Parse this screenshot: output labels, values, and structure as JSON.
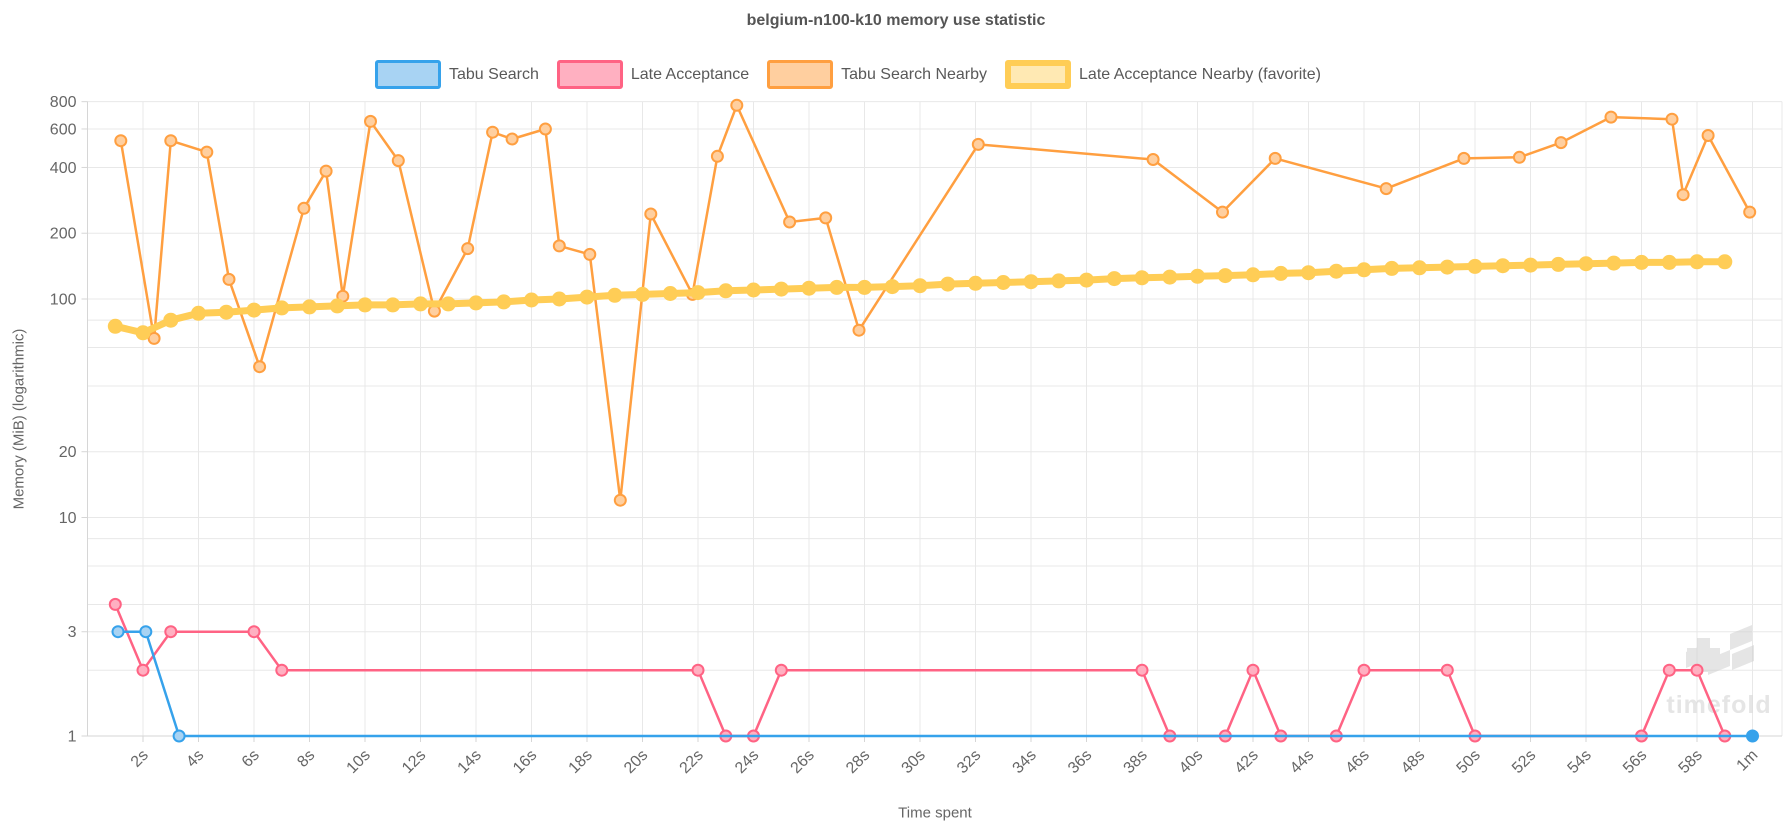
{
  "title": "belgium-n100-k10 memory use statistic",
  "axes": {
    "x_title": "Time spent",
    "y_title": "Memory (MiB) (logarithmic)",
    "x_ticks": [
      {
        "t": 2,
        "label": "2s"
      },
      {
        "t": 4,
        "label": "4s"
      },
      {
        "t": 6,
        "label": "6s"
      },
      {
        "t": 8,
        "label": "8s"
      },
      {
        "t": 10,
        "label": "10s"
      },
      {
        "t": 12,
        "label": "12s"
      },
      {
        "t": 14,
        "label": "14s"
      },
      {
        "t": 16,
        "label": "16s"
      },
      {
        "t": 18,
        "label": "18s"
      },
      {
        "t": 20,
        "label": "20s"
      },
      {
        "t": 22,
        "label": "22s"
      },
      {
        "t": 24,
        "label": "24s"
      },
      {
        "t": 26,
        "label": "26s"
      },
      {
        "t": 28,
        "label": "28s"
      },
      {
        "t": 30,
        "label": "30s"
      },
      {
        "t": 32,
        "label": "32s"
      },
      {
        "t": 34,
        "label": "34s"
      },
      {
        "t": 36,
        "label": "36s"
      },
      {
        "t": 38,
        "label": "38s"
      },
      {
        "t": 40,
        "label": "40s"
      },
      {
        "t": 42,
        "label": "42s"
      },
      {
        "t": 44,
        "label": "44s"
      },
      {
        "t": 46,
        "label": "46s"
      },
      {
        "t": 48,
        "label": "48s"
      },
      {
        "t": 50,
        "label": "50s"
      },
      {
        "t": 52,
        "label": "52s"
      },
      {
        "t": 54,
        "label": "54s"
      },
      {
        "t": 56,
        "label": "56s"
      },
      {
        "t": 58,
        "label": "58s"
      },
      {
        "t": 60,
        "label": "1m"
      }
    ],
    "y_ticks": [
      {
        "v": 800,
        "label": "800"
      },
      {
        "v": 600,
        "label": "600"
      },
      {
        "v": 400,
        "label": "400"
      },
      {
        "v": 200,
        "label": "200"
      },
      {
        "v": 100,
        "label": "100"
      },
      {
        "v": 80,
        "label": ""
      },
      {
        "v": 60,
        "label": ""
      },
      {
        "v": 40,
        "label": ""
      },
      {
        "v": 20,
        "label": "20"
      },
      {
        "v": 10,
        "label": "10"
      },
      {
        "v": 8,
        "label": ""
      },
      {
        "v": 6,
        "label": ""
      },
      {
        "v": 4,
        "label": ""
      },
      {
        "v": 3,
        "label": "3"
      },
      {
        "v": 2,
        "label": ""
      },
      {
        "v": 1,
        "label": "1"
      }
    ]
  },
  "chart_data": {
    "type": "line",
    "title": "belgium-n100-k10 memory use statistic",
    "xlabel": "Time spent",
    "ylabel": "Memory (MiB) (logarithmic)",
    "y_scale": "log",
    "ylim": [
      1,
      800
    ],
    "x_unit": "seconds",
    "xlim": [
      0,
      61
    ],
    "grid": true,
    "legend_position": "top",
    "series": [
      {
        "name": "Tabu Search",
        "color": "#36A2EB",
        "point_fill": "#A8D3F3",
        "emphasize_last_point": true,
        "favorite": false,
        "points": [
          [
            1.1,
            3
          ],
          [
            2.1,
            3
          ],
          [
            3.3,
            1
          ],
          [
            60,
            1
          ]
        ]
      },
      {
        "name": "Late Acceptance",
        "color": "#FF6384",
        "point_fill": "#FFB0C1",
        "emphasize_last_point": false,
        "favorite": false,
        "points": [
          [
            1,
            4
          ],
          [
            2,
            2
          ],
          [
            3,
            3
          ],
          [
            6,
            3
          ],
          [
            7,
            2
          ],
          [
            22,
            2
          ],
          [
            23,
            1
          ],
          [
            24,
            1
          ],
          [
            25,
            2
          ],
          [
            38,
            2
          ],
          [
            39,
            1
          ],
          [
            41,
            1
          ],
          [
            42,
            2
          ],
          [
            43,
            1
          ],
          [
            45,
            1
          ],
          [
            46,
            2
          ],
          [
            49,
            2
          ],
          [
            50,
            1
          ],
          [
            56,
            1
          ],
          [
            57,
            2
          ],
          [
            58,
            2
          ],
          [
            59,
            1
          ]
        ]
      },
      {
        "name": "Tabu Search Nearby",
        "color": "#FF9F40",
        "point_fill": "#FFCF9F",
        "emphasize_last_point": false,
        "favorite": false,
        "points": [
          [
            1.2,
            530
          ],
          [
            2.4,
            66
          ],
          [
            3,
            530
          ],
          [
            4.3,
            470
          ],
          [
            5.1,
            123
          ],
          [
            6.2,
            49
          ],
          [
            7.8,
            260
          ],
          [
            8.6,
            385
          ],
          [
            9.2,
            103
          ],
          [
            10.2,
            650
          ],
          [
            11.2,
            430
          ],
          [
            12.5,
            88
          ],
          [
            13.7,
            170
          ],
          [
            14.6,
            580
          ],
          [
            15.3,
            540
          ],
          [
            16.5,
            600
          ],
          [
            17,
            175
          ],
          [
            18.1,
            160
          ],
          [
            19.2,
            12
          ],
          [
            20.3,
            245
          ],
          [
            21.8,
            105
          ],
          [
            22.7,
            450
          ],
          [
            23.4,
            770
          ],
          [
            25.3,
            225
          ],
          [
            26.6,
            235
          ],
          [
            27.8,
            72
          ],
          [
            32.1,
            510
          ],
          [
            38.4,
            435
          ],
          [
            40.9,
            250
          ],
          [
            42.8,
            440
          ],
          [
            46.8,
            320
          ],
          [
            49.6,
            440
          ],
          [
            51.6,
            445
          ],
          [
            53.1,
            520
          ],
          [
            54.9,
            680
          ],
          [
            57.1,
            665
          ],
          [
            57.5,
            300
          ],
          [
            58.4,
            560
          ],
          [
            59.9,
            250
          ]
        ]
      },
      {
        "name": "Late Acceptance Nearby (favorite)",
        "color": "#FFCD56",
        "point_fill": "#FFCD56",
        "emphasize_last_point": false,
        "favorite": true,
        "points": [
          [
            1,
            75
          ],
          [
            2,
            70
          ],
          [
            3,
            80
          ],
          [
            4,
            86
          ],
          [
            5,
            87
          ],
          [
            6,
            89
          ],
          [
            7,
            91
          ],
          [
            8,
            92
          ],
          [
            9,
            93
          ],
          [
            10,
            94
          ],
          [
            11,
            94
          ],
          [
            12,
            95
          ],
          [
            13,
            95
          ],
          [
            14,
            96
          ],
          [
            15,
            97
          ],
          [
            16,
            99
          ],
          [
            17,
            100
          ],
          [
            18,
            102
          ],
          [
            19,
            104
          ],
          [
            20,
            105
          ],
          [
            21,
            106
          ],
          [
            22,
            107
          ],
          [
            23,
            109
          ],
          [
            24,
            110
          ],
          [
            25,
            111
          ],
          [
            26,
            112
          ],
          [
            27,
            113
          ],
          [
            28,
            113
          ],
          [
            29,
            114
          ],
          [
            30,
            115
          ],
          [
            31,
            117
          ],
          [
            32,
            118
          ],
          [
            33,
            119
          ],
          [
            34,
            120
          ],
          [
            35,
            121
          ],
          [
            36,
            122
          ],
          [
            37,
            124
          ],
          [
            38,
            125
          ],
          [
            39,
            126
          ],
          [
            40,
            127
          ],
          [
            41,
            128
          ],
          [
            42,
            129
          ],
          [
            43,
            131
          ],
          [
            44,
            132
          ],
          [
            45,
            134
          ],
          [
            46,
            136
          ],
          [
            47,
            138
          ],
          [
            48,
            139
          ],
          [
            49,
            140
          ],
          [
            50,
            141
          ],
          [
            51,
            142
          ],
          [
            52,
            143
          ],
          [
            53,
            144
          ],
          [
            54,
            145
          ],
          [
            55,
            146
          ],
          [
            56,
            147
          ],
          [
            57,
            147
          ],
          [
            58,
            148
          ],
          [
            59,
            148
          ]
        ]
      }
    ]
  },
  "watermark": {
    "text": "timefold"
  },
  "colors": {
    "grid": "#e8e8e8",
    "axis_border": "#d6d6d6",
    "tick_text": "#666666",
    "title_text": "#555555",
    "watermark": "#d0d0d0",
    "background": "#ffffff"
  }
}
